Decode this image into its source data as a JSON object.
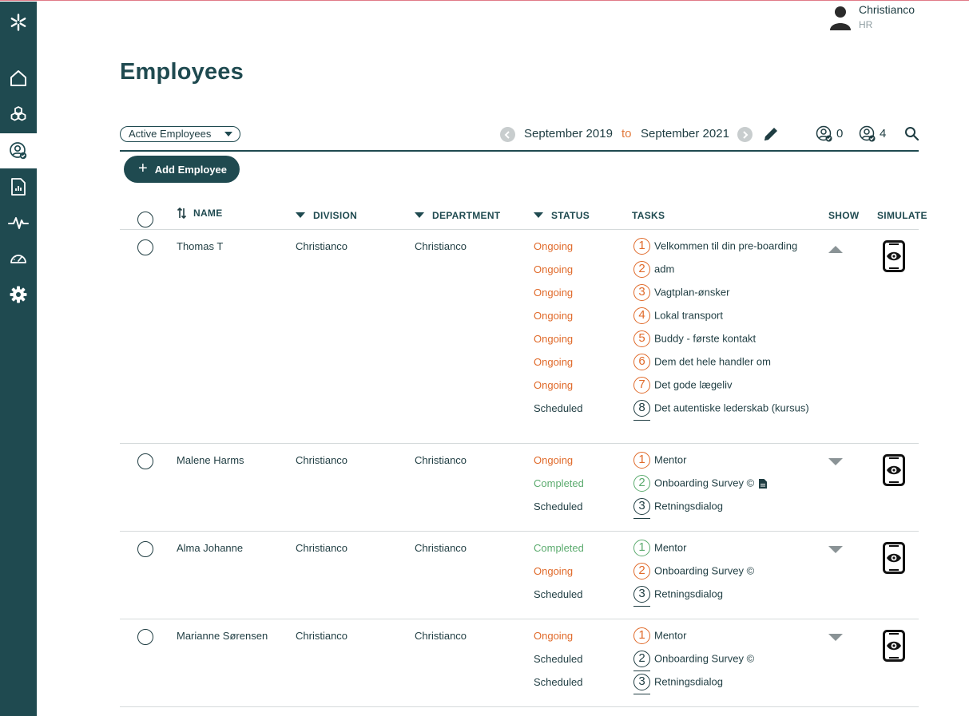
{
  "user": {
    "name": "Christianco",
    "role": "HR"
  },
  "page": {
    "title": "Employees"
  },
  "toolbar": {
    "filter_value": "Active Employees",
    "date_from": "September 2019",
    "date_separator": "to",
    "date_to": "September 2021",
    "count_a": "0",
    "count_b": "4",
    "add_employee_label": "Add Employee",
    "add_employee_icon": "+"
  },
  "table": {
    "headers": {
      "name": "NAME",
      "division": "DIVISION",
      "department": "DEPARTMENT",
      "status": "STATUS",
      "tasks": "TASKS",
      "show": "SHOW",
      "simulate": "SIMULATE"
    },
    "rows": [
      {
        "name": "Thomas T",
        "division": "Christianco",
        "department": "Christianco",
        "expanded": true,
        "tasks": [
          {
            "num": "1",
            "label": "Velkommen til din pre-boarding",
            "status": "Ongoing"
          },
          {
            "num": "2",
            "label": "adm",
            "status": "Ongoing"
          },
          {
            "num": "3",
            "label": "Vagtplan-ønsker",
            "status": "Ongoing"
          },
          {
            "num": "4",
            "label": "Lokal transport",
            "status": "Ongoing"
          },
          {
            "num": "5",
            "label": "Buddy - første kontakt",
            "status": "Ongoing"
          },
          {
            "num": "6",
            "label": "Dem det hele handler om",
            "status": "Ongoing"
          },
          {
            "num": "7",
            "label": "Det gode lægeliv",
            "status": "Ongoing"
          },
          {
            "num": "8",
            "label": "Det autentiske lederskab (kursus)",
            "status": "Scheduled"
          }
        ]
      },
      {
        "name": "Malene Harms",
        "division": "Christianco",
        "department": "Christianco",
        "expanded": false,
        "tasks": [
          {
            "num": "1",
            "label": "Mentor",
            "status": "Ongoing"
          },
          {
            "num": "2",
            "label": "Onboarding Survey ©",
            "status": "Completed",
            "doc": true
          },
          {
            "num": "3",
            "label": "Retningsdialog",
            "status": "Scheduled"
          }
        ]
      },
      {
        "name": "Alma Johanne",
        "division": "Christianco",
        "department": "Christianco",
        "expanded": false,
        "tasks": [
          {
            "num": "1",
            "label": "Mentor",
            "status": "Completed"
          },
          {
            "num": "2",
            "label": "Onboarding Survey ©",
            "status": "Ongoing"
          },
          {
            "num": "3",
            "label": "Retningsdialog",
            "status": "Scheduled"
          }
        ]
      },
      {
        "name": "Marianne Sørensen",
        "division": "Christianco",
        "department": "Christianco",
        "expanded": false,
        "tasks": [
          {
            "num": "1",
            "label": "Mentor",
            "status": "Ongoing"
          },
          {
            "num": "2",
            "label": "Onboarding Survey ©",
            "status": "Scheduled"
          },
          {
            "num": "3",
            "label": "Retningsdialog",
            "status": "Scheduled"
          }
        ]
      }
    ]
  },
  "sidebar": {
    "items": [
      {
        "icon": "home-icon"
      },
      {
        "icon": "boxes-icon"
      },
      {
        "icon": "employees-icon",
        "active": true
      },
      {
        "icon": "report-icon"
      },
      {
        "icon": "pulse-icon"
      },
      {
        "icon": "dashboard-gauge-icon"
      },
      {
        "icon": "gear-icon"
      }
    ]
  },
  "colors": {
    "sidebar_bg": "#1f4a50",
    "accent_orange": "#e06a2a",
    "completed_green": "#5bab6e",
    "text_dark": "#1f3d42"
  }
}
